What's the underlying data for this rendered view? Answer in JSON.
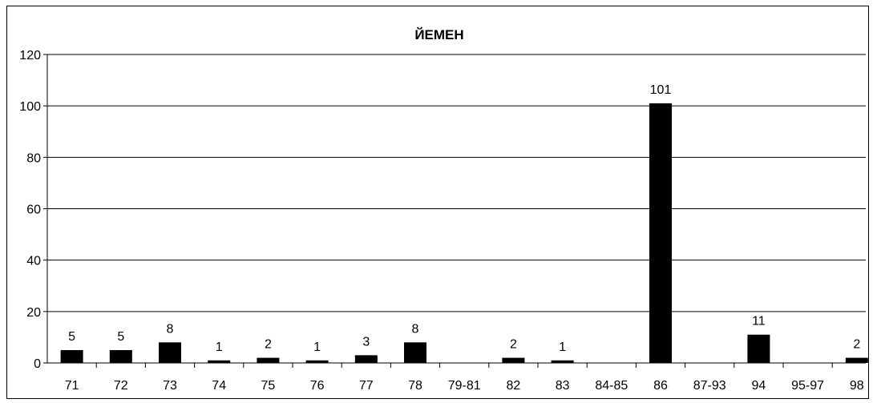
{
  "chart_data": {
    "type": "bar",
    "title": "ЙЕМЕН",
    "xlabel": "",
    "ylabel": "",
    "categories": [
      "71",
      "72",
      "73",
      "74",
      "75",
      "76",
      "77",
      "78",
      "79-81",
      "82",
      "83",
      "84-85",
      "86",
      "87-93",
      "94",
      "95-97",
      "98"
    ],
    "values": [
      5,
      5,
      8,
      1,
      2,
      1,
      3,
      8,
      0,
      2,
      1,
      0,
      101,
      0,
      11,
      0,
      2
    ],
    "data_labels": [
      "5",
      "5",
      "8",
      "1",
      "2",
      "1",
      "3",
      "8",
      "",
      "2",
      "1",
      "",
      "101",
      "",
      "11",
      "",
      "2"
    ],
    "ylim": [
      0,
      120
    ],
    "yticks": [
      0,
      20,
      40,
      60,
      80,
      100,
      120
    ],
    "grid": true,
    "legend": "none",
    "bar_color": "#000000",
    "grid_color": "#000000"
  }
}
